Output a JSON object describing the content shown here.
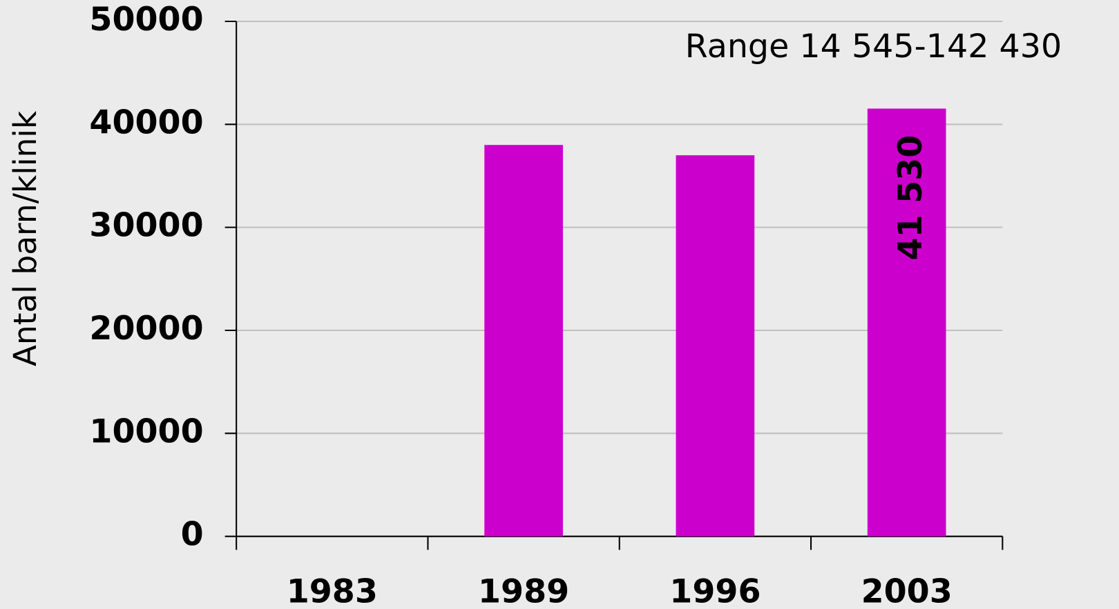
{
  "chart_data": {
    "type": "bar",
    "y_label": "Antal barn/klinik",
    "annotation": "Range 14 545-142 430",
    "categories": [
      "1983",
      "1989",
      "1996",
      "2003"
    ],
    "values": [
      null,
      38000,
      37000,
      41530
    ],
    "value_labels": [
      null,
      null,
      null,
      "41 530"
    ],
    "color": "#cc00cc",
    "ylim": [
      0,
      50000
    ],
    "yticks": [
      0,
      10000,
      20000,
      30000,
      40000,
      50000
    ],
    "grid": true
  }
}
